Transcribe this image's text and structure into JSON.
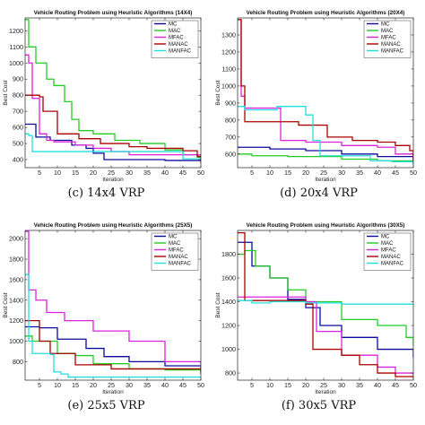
{
  "chart_data": [
    {
      "type": "line",
      "panel_caption": "(c) 14x4 VRP",
      "title": "Vehicle Routing Problem using Heuristic Algorithms (14X4)",
      "xlabel": "Iteration",
      "ylabel": "Best Cost",
      "xlim": [
        1,
        50
      ],
      "ylim": [
        350,
        1280
      ],
      "xticks": [
        "5",
        "10",
        "15",
        "20",
        "25",
        "30",
        "35",
        "40",
        "45",
        "50"
      ],
      "yticks": [
        "400",
        "500",
        "600",
        "700",
        "800",
        "900",
        "1000",
        "1100",
        "1200"
      ],
      "legend": "top-right",
      "series": [
        {
          "name": "MC",
          "color": "#0a0aa0",
          "points": [
            [
              1,
              620
            ],
            [
              3,
              620
            ],
            [
              4,
              540
            ],
            [
              8,
              520
            ],
            [
              14,
              490
            ],
            [
              18,
              470
            ],
            [
              20,
              440
            ],
            [
              23,
              400
            ],
            [
              35,
              400
            ],
            [
              40,
              395
            ],
            [
              50,
              392
            ]
          ]
        },
        {
          "name": "MAC",
          "color": "#22cc22",
          "points": [
            [
              1,
              1270
            ],
            [
              2,
              1100
            ],
            [
              4,
              1000
            ],
            [
              7,
              900
            ],
            [
              9,
              860
            ],
            [
              12,
              760
            ],
            [
              14,
              650
            ],
            [
              16,
              580
            ],
            [
              20,
              560
            ],
            [
              26,
              520
            ],
            [
              33,
              500
            ],
            [
              40,
              460
            ],
            [
              45,
              430
            ],
            [
              49,
              415
            ],
            [
              50,
              390
            ]
          ]
        },
        {
          "name": "MFAC",
          "color": "#dd22dd",
          "points": [
            [
              1,
              1050
            ],
            [
              2,
              1000
            ],
            [
              3,
              780
            ],
            [
              5,
              560
            ],
            [
              7,
              520
            ],
            [
              9,
              510
            ],
            [
              15,
              490
            ],
            [
              20,
              470
            ],
            [
              25,
              450
            ],
            [
              30,
              430
            ],
            [
              40,
              430
            ],
            [
              50,
              420
            ]
          ]
        },
        {
          "name": "MANAC",
          "color": "#aa0000",
          "points": [
            [
              1,
              800
            ],
            [
              5,
              790
            ],
            [
              6,
              700
            ],
            [
              9,
              700
            ],
            [
              10,
              560
            ],
            [
              14,
              560
            ],
            [
              16,
              530
            ],
            [
              20,
              530
            ],
            [
              22,
              500
            ],
            [
              30,
              480
            ],
            [
              35,
              470
            ],
            [
              40,
              470
            ],
            [
              45,
              455
            ],
            [
              49,
              420
            ],
            [
              50,
              380
            ]
          ]
        },
        {
          "name": "MANFAC",
          "color": "#22dddd",
          "points": [
            [
              1,
              560
            ],
            [
              2,
              550
            ],
            [
              3,
              450
            ],
            [
              40,
              450
            ],
            [
              45,
              405
            ],
            [
              50,
              400
            ]
          ]
        }
      ]
    },
    {
      "type": "line",
      "panel_caption": "(d) 20x4 VRP",
      "title": "Vehicle Routing Problem using Heuristic Algorithms (20X4)",
      "xlabel": "Iteration",
      "ylabel": "Best Cost",
      "xlim": [
        1,
        50
      ],
      "ylim": [
        520,
        1400
      ],
      "xticks": [
        "5",
        "10",
        "15",
        "20",
        "25",
        "30",
        "35",
        "40",
        "45",
        "50"
      ],
      "yticks": [
        "600",
        "700",
        "800",
        "900",
        "1000",
        "1100",
        "1200",
        "1300"
      ],
      "legend": "top-right",
      "series": [
        {
          "name": "MC",
          "color": "#0a0aa0",
          "points": [
            [
              1,
              640
            ],
            [
              10,
              630
            ],
            [
              20,
              620
            ],
            [
              30,
              600
            ],
            [
              40,
              585
            ],
            [
              50,
              560
            ]
          ]
        },
        {
          "name": "MAC",
          "color": "#22cc22",
          "points": [
            [
              1,
              600
            ],
            [
              5,
              590
            ],
            [
              15,
              585
            ],
            [
              30,
              570
            ],
            [
              40,
              560
            ],
            [
              50,
              560
            ]
          ]
        },
        {
          "name": "MFAC",
          "color": "#dd22dd",
          "points": [
            [
              1,
              1390
            ],
            [
              2,
              940
            ],
            [
              3,
              870
            ],
            [
              12,
              870
            ],
            [
              13,
              680
            ],
            [
              20,
              670
            ],
            [
              30,
              650
            ],
            [
              40,
              640
            ],
            [
              45,
              600
            ],
            [
              50,
              540
            ]
          ]
        },
        {
          "name": "MANAC",
          "color": "#aa0000",
          "points": [
            [
              1,
              1390
            ],
            [
              2,
              1000
            ],
            [
              3,
              790
            ],
            [
              17,
              790
            ],
            [
              18,
              770
            ],
            [
              25,
              770
            ],
            [
              26,
              700
            ],
            [
              32,
              700
            ],
            [
              33,
              680
            ],
            [
              40,
              670
            ],
            [
              45,
              650
            ],
            [
              49,
              620
            ],
            [
              50,
              540
            ]
          ]
        },
        {
          "name": "MANFAC",
          "color": "#22dddd",
          "points": [
            [
              1,
              880
            ],
            [
              3,
              860
            ],
            [
              12,
              880
            ],
            [
              17,
              880
            ],
            [
              20,
              830
            ],
            [
              22,
              680
            ],
            [
              24,
              590
            ],
            [
              35,
              590
            ],
            [
              38,
              560
            ],
            [
              44,
              555
            ],
            [
              50,
              540
            ]
          ]
        }
      ]
    },
    {
      "type": "line",
      "panel_caption": "(e) 25x5 VRP",
      "title": "Vehicle Routing Problem using Heuristic Algorithms (25X5)",
      "xlabel": "Iteration",
      "ylabel": "Best Cost",
      "xlim": [
        1,
        50
      ],
      "ylim": [
        620,
        2080
      ],
      "xticks": [
        "5",
        "10",
        "15",
        "20",
        "25",
        "30",
        "35",
        "40",
        "45",
        "50"
      ],
      "yticks": [
        "800",
        "1000",
        "1200",
        "1400",
        "1600",
        "1800",
        "2000"
      ],
      "legend": "top-right",
      "series": [
        {
          "name": "MC",
          "color": "#0a0aa0",
          "points": [
            [
              1,
              1140
            ],
            [
              5,
              1130
            ],
            [
              10,
              1020
            ],
            [
              18,
              930
            ],
            [
              23,
              850
            ],
            [
              30,
              800
            ],
            [
              40,
              760
            ],
            [
              50,
              720
            ]
          ]
        },
        {
          "name": "MAC",
          "color": "#22cc22",
          "points": [
            [
              1,
              1050
            ],
            [
              3,
              1000
            ],
            [
              10,
              880
            ],
            [
              15,
              860
            ],
            [
              20,
              780
            ],
            [
              30,
              730
            ],
            [
              40,
              720
            ],
            [
              50,
              700
            ]
          ]
        },
        {
          "name": "MFAC",
          "color": "#dd22dd",
          "points": [
            [
              1,
              2070
            ],
            [
              2,
              1500
            ],
            [
              4,
              1400
            ],
            [
              7,
              1280
            ],
            [
              12,
              1200
            ],
            [
              20,
              1100
            ],
            [
              30,
              1000
            ],
            [
              40,
              800
            ],
            [
              50,
              720
            ]
          ]
        },
        {
          "name": "MANAC",
          "color": "#aa0000",
          "points": [
            [
              1,
              1200
            ],
            [
              5,
              1000
            ],
            [
              8,
              880
            ],
            [
              15,
              770
            ],
            [
              25,
              730
            ],
            [
              50,
              680
            ]
          ]
        },
        {
          "name": "MANFAC",
          "color": "#22dddd",
          "points": [
            [
              1,
              1650
            ],
            [
              2,
              1000
            ],
            [
              3,
              880
            ],
            [
              8,
              870
            ],
            [
              9,
              700
            ],
            [
              11,
              680
            ],
            [
              13,
              650
            ],
            [
              50,
              650
            ]
          ]
        }
      ]
    },
    {
      "type": "line",
      "panel_caption": "(f) 30x5 VRP",
      "title": "Vehicle Routing Problem using Heuristic Algorithms (30X5)",
      "xlabel": "Iteration",
      "ylabel": "Best Cost",
      "xlim": [
        1,
        50
      ],
      "ylim": [
        740,
        2000
      ],
      "xticks": [
        "5",
        "10",
        "15",
        "20",
        "25",
        "30",
        "35",
        "40",
        "45",
        "50"
      ],
      "yticks": [
        "800",
        "1000",
        "1200",
        "1400",
        "1600",
        "1800"
      ],
      "legend": "top-right",
      "series": [
        {
          "name": "MC",
          "color": "#0a0aa0",
          "points": [
            [
              1,
              1900
            ],
            [
              5,
              1700
            ],
            [
              10,
              1600
            ],
            [
              15,
              1420
            ],
            [
              20,
              1350
            ],
            [
              24,
              1200
            ],
            [
              30,
              1100
            ],
            [
              40,
              1000
            ],
            [
              50,
              930
            ]
          ]
        },
        {
          "name": "MAC",
          "color": "#22cc22",
          "points": [
            [
              1,
              1800
            ],
            [
              3,
              1830
            ],
            [
              6,
              1700
            ],
            [
              10,
              1600
            ],
            [
              15,
              1500
            ],
            [
              20,
              1400
            ],
            [
              30,
              1250
            ],
            [
              40,
              1200
            ],
            [
              48,
              1100
            ],
            [
              50,
              1030
            ]
          ]
        },
        {
          "name": "MFAC",
          "color": "#dd22dd",
          "points": [
            [
              1,
              1440
            ],
            [
              20,
              1400
            ],
            [
              23,
              1150
            ],
            [
              30,
              950
            ],
            [
              40,
              850
            ],
            [
              45,
              800
            ],
            [
              50,
              770
            ]
          ]
        },
        {
          "name": "MANAC",
          "color": "#aa0000",
          "points": [
            [
              1,
              1980
            ],
            [
              3,
              1410
            ],
            [
              20,
              1380
            ],
            [
              22,
              1000
            ],
            [
              30,
              950
            ],
            [
              35,
              870
            ],
            [
              40,
              800
            ],
            [
              45,
              770
            ],
            [
              50,
              760
            ]
          ]
        },
        {
          "name": "MANFAC",
          "color": "#22dddd",
          "points": [
            [
              1,
              1410
            ],
            [
              5,
              1390
            ],
            [
              10,
              1400
            ],
            [
              20,
              1390
            ],
            [
              30,
              1380
            ],
            [
              40,
              1380
            ],
            [
              50,
              1380
            ]
          ]
        }
      ]
    }
  ]
}
